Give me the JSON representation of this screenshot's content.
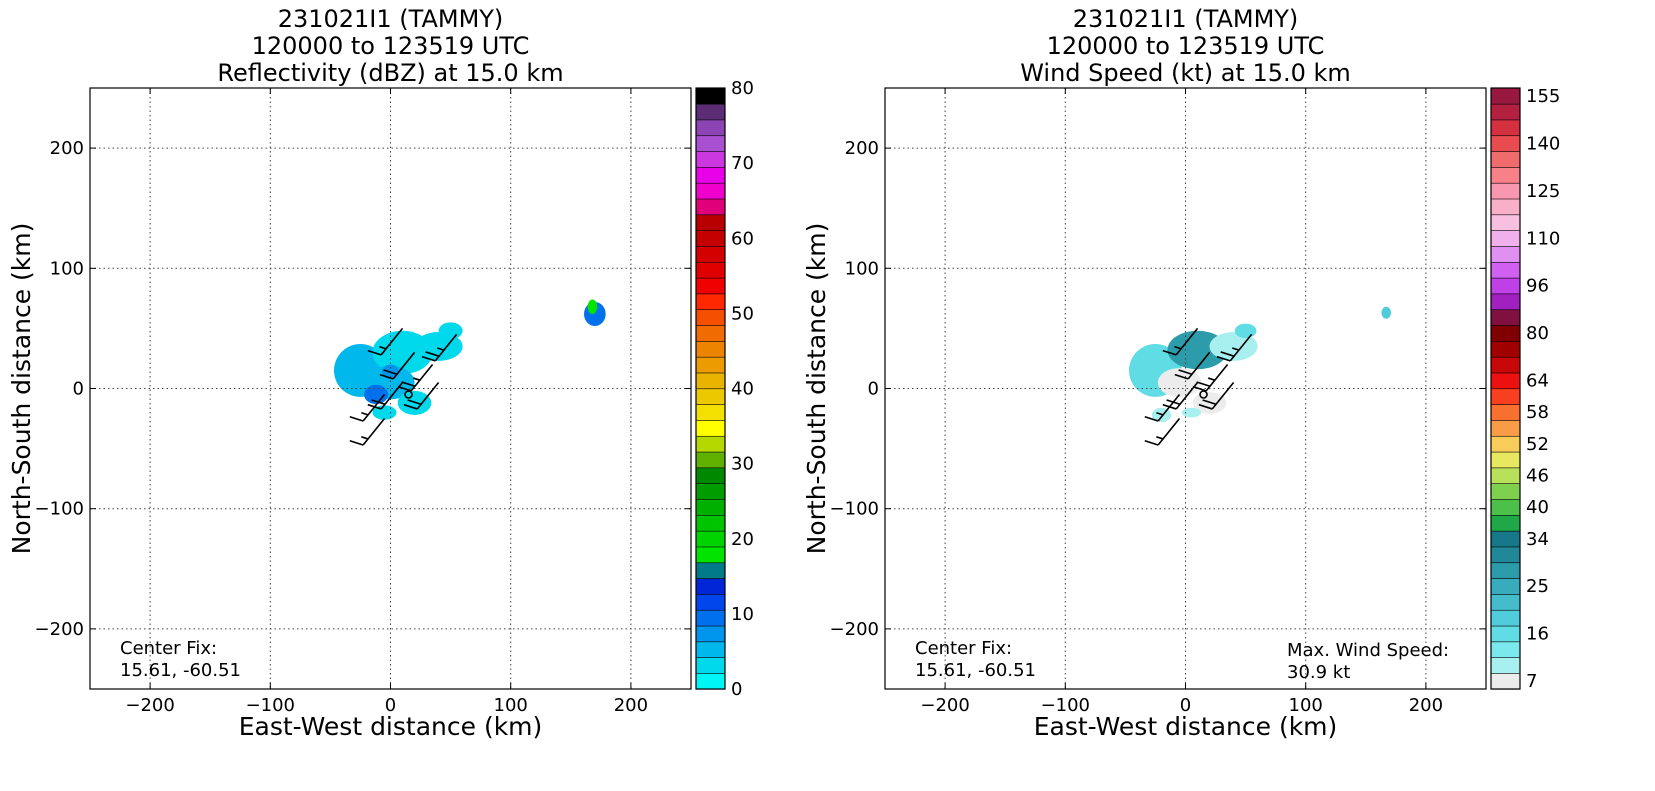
{
  "chart_data": [
    {
      "type": "heatmap",
      "title_lines": [
        "231021I1 (TAMMY)",
        "120000 to 123519 UTC",
        "Reflectivity (dBZ) at 15.0 km"
      ],
      "xlabel": "East-West distance (km)",
      "ylabel": "North-South distance (km)",
      "xlim": [
        -250,
        250
      ],
      "ylim": [
        -250,
        250
      ],
      "xticks": [
        -200,
        -100,
        0,
        100,
        200
      ],
      "yticks": [
        -200,
        -100,
        0,
        100,
        200
      ],
      "grid": true,
      "colorbar": {
        "min": 0,
        "max": 80,
        "step": 2.5,
        "ticks": [
          0,
          10,
          20,
          30,
          40,
          50,
          60,
          70,
          80
        ],
        "colors": [
          "#00f5f5",
          "#00d8ec",
          "#00b8ec",
          "#0095ec",
          "#0070ec",
          "#0046ec",
          "#0026d8",
          "#007a88",
          "#00e400",
          "#00d400",
          "#00c400",
          "#00b000",
          "#009c00",
          "#008800",
          "#60b000",
          "#b4d800",
          "#ffff00",
          "#f4e000",
          "#ecc800",
          "#e8b400",
          "#ec9c00",
          "#ec8400",
          "#f06c00",
          "#f45000",
          "#ff2800",
          "#f00000",
          "#e00000",
          "#d40000",
          "#c40000",
          "#b80000",
          "#e0007a",
          "#f000cc",
          "#e800e8",
          "#cc38e0",
          "#a850d0",
          "#8c44b4",
          "#5c2c74",
          "#000000"
        ]
      },
      "annotation": {
        "line1": "Center Fix:",
        "line2": "15.61, -60.51"
      },
      "echo_regions": [
        {
          "x": -25,
          "y": 15,
          "rx": 22,
          "ry": 22,
          "dbz": 5
        },
        {
          "x": 10,
          "y": 30,
          "rx": 25,
          "ry": 18,
          "dbz": 4
        },
        {
          "x": 40,
          "y": 35,
          "rx": 20,
          "ry": 12,
          "dbz": 3
        },
        {
          "x": 50,
          "y": 48,
          "rx": 10,
          "ry": 7,
          "dbz": 4
        },
        {
          "x": 0,
          "y": 5,
          "rx": 20,
          "ry": 14,
          "dbz": 6
        },
        {
          "x": -12,
          "y": -5,
          "rx": 10,
          "ry": 8,
          "dbz": 11
        },
        {
          "x": 0,
          "y": 14,
          "rx": 7,
          "ry": 6,
          "dbz": 9
        },
        {
          "x": 20,
          "y": -12,
          "rx": 14,
          "ry": 10,
          "dbz": 3
        },
        {
          "x": -5,
          "y": -20,
          "rx": 10,
          "ry": 6,
          "dbz": 3
        },
        {
          "x": 170,
          "y": 62,
          "rx": 9,
          "ry": 10,
          "dbz": 11
        },
        {
          "x": 168,
          "y": 68,
          "rx": 4,
          "ry": 6,
          "dbz": 21
        }
      ]
    },
    {
      "type": "heatmap",
      "title_lines": [
        "231021I1 (TAMMY)",
        "120000 to 123519 UTC",
        "Wind Speed (kt) at 15.0 km"
      ],
      "xlabel": "East-West distance (km)",
      "ylabel": "North-South distance (km)",
      "xlim": [
        -250,
        250
      ],
      "ylim": [
        -250,
        250
      ],
      "xticks": [
        -200,
        -100,
        0,
        100,
        200
      ],
      "yticks": [
        -200,
        -100,
        0,
        100,
        200
      ],
      "grid": true,
      "colorbar": {
        "tick_labels": [
          "7",
          "16",
          "25",
          "34",
          "40",
          "46",
          "52",
          "58",
          "64",
          "80",
          "96",
          "110",
          "125",
          "140",
          "155"
        ],
        "tick_bins": [
          0,
          3,
          6,
          9,
          11,
          13,
          15,
          17,
          19,
          22,
          25,
          28,
          31,
          34,
          37
        ],
        "colors": [
          "#ececec",
          "#a8f0f0",
          "#7ae8ec",
          "#60dce4",
          "#50ccdc",
          "#44bccc",
          "#38acbc",
          "#2c9caa",
          "#208898",
          "#167888",
          "#20a848",
          "#4cc048",
          "#80d050",
          "#b8e058",
          "#e8e860",
          "#f8cc58",
          "#f89c48",
          "#f87030",
          "#f84020",
          "#ec1010",
          "#c80808",
          "#a00000",
          "#800000",
          "#801040",
          "#a020c0",
          "#c040e8",
          "#d060f0",
          "#e090f0",
          "#f0b0ec",
          "#f8c0e0",
          "#f8b0c8",
          "#f898b0",
          "#f88088",
          "#f06c6c",
          "#e84c50",
          "#d43040",
          "#b42040",
          "#981840"
        ]
      },
      "annotation": {
        "line1": "Center Fix:",
        "line2": "15.61, -60.51"
      },
      "max_wind": {
        "line1": "Max. Wind Speed:",
        "line2": "30.9 kt"
      },
      "echo_regions": [
        {
          "x": -25,
          "y": 15,
          "rx": 22,
          "ry": 22,
          "kt": 20
        },
        {
          "x": 10,
          "y": 32,
          "rx": 25,
          "ry": 16,
          "kt": 26
        },
        {
          "x": 40,
          "y": 35,
          "rx": 20,
          "ry": 12,
          "kt": 14
        },
        {
          "x": 50,
          "y": 48,
          "rx": 9,
          "ry": 6,
          "kt": 22
        },
        {
          "x": -5,
          "y": 5,
          "rx": 18,
          "ry": 12,
          "kt": 12
        },
        {
          "x": 20,
          "y": -12,
          "rx": 14,
          "ry": 9,
          "kt": 9
        },
        {
          "x": -20,
          "y": -22,
          "rx": 8,
          "ry": 6,
          "kt": 14
        },
        {
          "x": 5,
          "y": -20,
          "rx": 8,
          "ry": 4,
          "kt": 5
        },
        {
          "x": 167,
          "y": 63,
          "rx": 4,
          "ry": 5,
          "kt": 24
        }
      ]
    }
  ],
  "wind_barbs": [
    {
      "x": 10,
      "y": 50,
      "kt": 15
    },
    {
      "x": 55,
      "y": 45,
      "kt": 25
    },
    {
      "x": 20,
      "y": 30,
      "kt": 20
    },
    {
      "x": 35,
      "y": 20,
      "kt": 25
    },
    {
      "x": 10,
      "y": 5,
      "kt": 20
    },
    {
      "x": 40,
      "y": 5,
      "kt": 20
    },
    {
      "x": -5,
      "y": -5,
      "kt": 15
    },
    {
      "x": 15,
      "y": -5,
      "calm": true
    },
    {
      "x": -5,
      "y": -25,
      "kt": 15
    }
  ]
}
